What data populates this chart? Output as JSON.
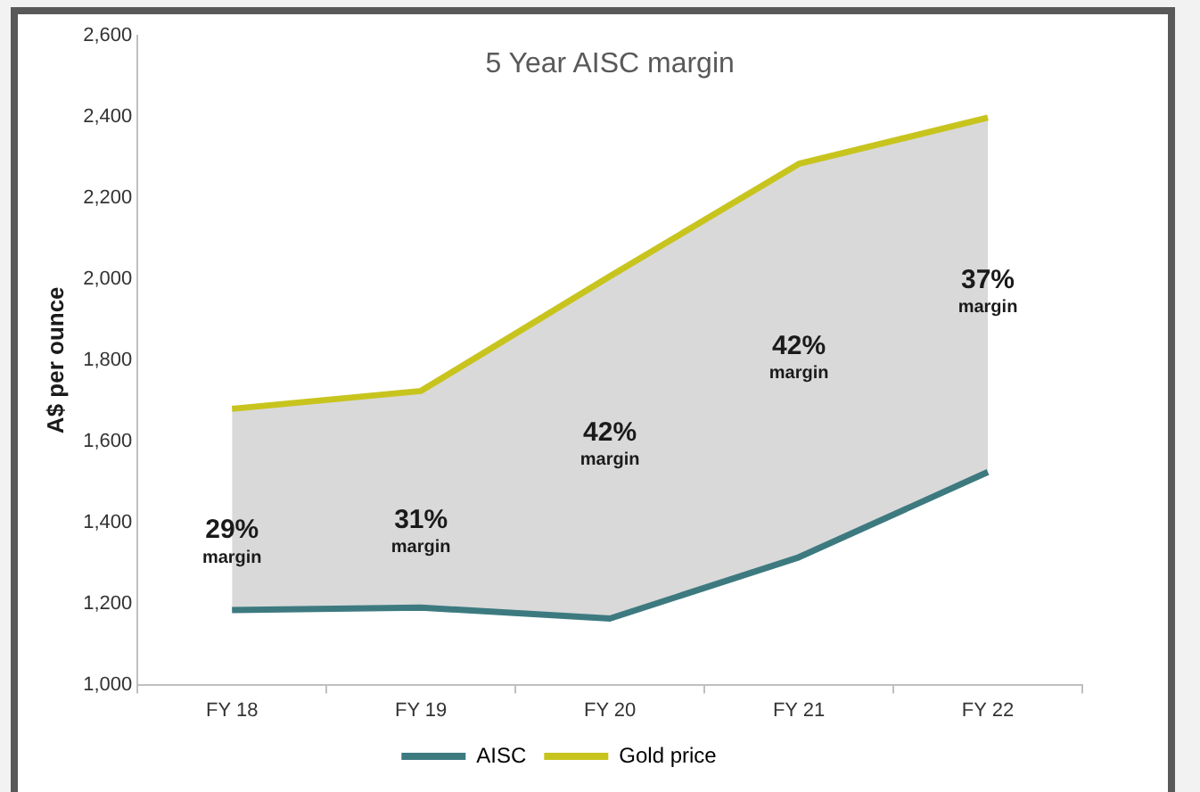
{
  "chart_data": {
    "type": "line",
    "title": "5 Year AISC margin",
    "ylabel": "A$ per ounce",
    "categories": [
      "FY 18",
      "FY 19",
      "FY 20",
      "FY 21",
      "FY 22"
    ],
    "series": [
      {
        "name": "AISC",
        "color": "#3d7a80",
        "values": [
          1184,
          1190,
          1163,
          1314,
          1524
        ]
      },
      {
        "name": "Gold price",
        "color": "#c8c41e",
        "values": [
          1680,
          1724,
          2007,
          2284,
          2398
        ],
        "lower": [
          1184,
          1190,
          1163,
          1314,
          1524
        ],
        "upper": [
          1680,
          1724,
          2007,
          2284,
          2398
        ]
      }
    ],
    "annotations": [
      "29%\nmargin",
      "31%\nmargin",
      "42%\nmargin",
      "42%\nmargin",
      "37%\nmargin"
    ],
    "ylim": [
      1000,
      2600
    ],
    "yticks": [
      {
        "value": 1000,
        "label": "1,000"
      },
      {
        "value": 1200,
        "label": "1,200"
      },
      {
        "value": 1400,
        "label": "1,400"
      },
      {
        "value": 1600,
        "label": "1,600"
      },
      {
        "value": 1800,
        "label": "1,800"
      },
      {
        "value": 2000,
        "label": "2,000"
      },
      {
        "value": 2200,
        "label": "2,200"
      },
      {
        "value": 2400,
        "label": "2,400"
      },
      {
        "value": 2600,
        "label": "2,600"
      }
    ],
    "grid": false,
    "legend": "bottom",
    "marker": "none",
    "line_style": "solid"
  }
}
